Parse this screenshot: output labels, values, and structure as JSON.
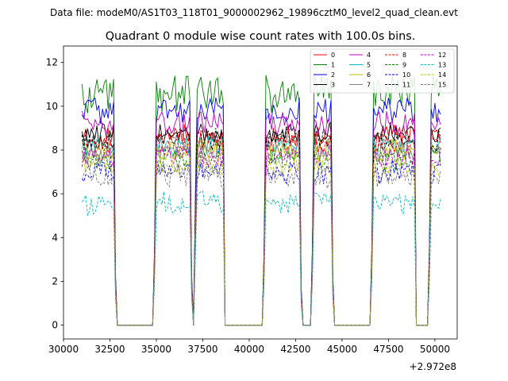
{
  "figure": {
    "suptitle": "Data file: modeM0/AS1T03_118T01_9000002962_19896cztM0_level2_quad_clean.evt"
  },
  "chart_data": {
    "type": "line",
    "title": "Quadrant 0 module wise count rates with 100.0s bins.",
    "xlabel": "",
    "ylabel": "",
    "x_offset_label": "+2.972e8",
    "xlim": [
      30000,
      51200
    ],
    "ylim": [
      -0.63,
      12.75
    ],
    "x_ticks": [
      30000,
      32500,
      35000,
      37500,
      40000,
      42500,
      45000,
      47500,
      50000
    ],
    "x_tick_labels": [
      "30000",
      "32500",
      "35000",
      "37500",
      "40000",
      "42500",
      "45000",
      "47500",
      "50000"
    ],
    "y_ticks": [
      0,
      2,
      4,
      6,
      8,
      10,
      12
    ],
    "y_tick_labels": [
      "0",
      "2",
      "4",
      "6",
      "8",
      "10",
      "12"
    ],
    "x_start": 31000,
    "x_step": 100,
    "active_segments": [
      [
        31000,
        32700
      ],
      [
        35000,
        36800
      ],
      [
        37200,
        38600
      ],
      [
        40900,
        42700
      ],
      [
        43500,
        44400
      ],
      [
        46700,
        48900
      ],
      [
        49800,
        50300
      ]
    ],
    "ramp_points": [
      [
        32800,
        2.0
      ],
      [
        32900,
        0.0
      ],
      [
        34900,
        3.0
      ],
      [
        36900,
        2.0
      ],
      [
        37000,
        0.0
      ],
      [
        37100,
        5.0
      ],
      [
        38700,
        0.0
      ],
      [
        40800,
        3.0
      ],
      [
        42800,
        1.5
      ],
      [
        42900,
        0.0
      ],
      [
        43000,
        0.0
      ],
      [
        43400,
        3.0
      ],
      [
        44500,
        2.0
      ],
      [
        44600,
        0.0
      ],
      [
        46600,
        3.0
      ],
      [
        49000,
        0.0
      ],
      [
        49700,
        3.0
      ]
    ],
    "legend": {
      "location": "upper-right",
      "columns": 4
    },
    "series": [
      {
        "name": "0",
        "color": "#ff0000",
        "linestyle": "solid",
        "level": 8.6,
        "noise": 0.28
      },
      {
        "name": "1",
        "color": "#008000",
        "linestyle": "solid",
        "level": 10.6,
        "noise": 0.5
      },
      {
        "name": "2",
        "color": "#0000ff",
        "linestyle": "solid",
        "level": 9.8,
        "noise": 0.32
      },
      {
        "name": "3",
        "color": "#000000",
        "linestyle": "solid",
        "level": 8.8,
        "noise": 0.28
      },
      {
        "name": "4",
        "color": "#bf00bf",
        "linestyle": "solid",
        "level": 9.2,
        "noise": 0.3
      },
      {
        "name": "5",
        "color": "#00bfbf",
        "linestyle": "solid",
        "level": 8.2,
        "noise": 0.28
      },
      {
        "name": "6",
        "color": "#bfbf00",
        "linestyle": "solid",
        "level": 8.0,
        "noise": 0.28
      },
      {
        "name": "7",
        "color": "#808080",
        "linestyle": "solid",
        "level": 7.9,
        "noise": 0.28
      },
      {
        "name": "8",
        "color": "#ff0000",
        "linestyle": "dashed",
        "level": 8.3,
        "noise": 0.28
      },
      {
        "name": "9",
        "color": "#008000",
        "linestyle": "dashed",
        "level": 7.6,
        "noise": 0.28
      },
      {
        "name": "10",
        "color": "#0000ff",
        "linestyle": "dashed",
        "level": 7.0,
        "noise": 0.3
      },
      {
        "name": "11",
        "color": "#000000",
        "linestyle": "dashed",
        "level": 8.5,
        "noise": 0.28
      },
      {
        "name": "12",
        "color": "#bf00bf",
        "linestyle": "dashed",
        "level": 7.7,
        "noise": 0.28
      },
      {
        "name": "13",
        "color": "#00bfbf",
        "linestyle": "dashed",
        "level": 5.6,
        "noise": 0.28
      },
      {
        "name": "14",
        "color": "#bfbf00",
        "linestyle": "dashed",
        "level": 7.3,
        "noise": 0.28
      },
      {
        "name": "15",
        "color": "#808080",
        "linestyle": "dashed",
        "level": 6.8,
        "noise": 0.3
      }
    ]
  }
}
